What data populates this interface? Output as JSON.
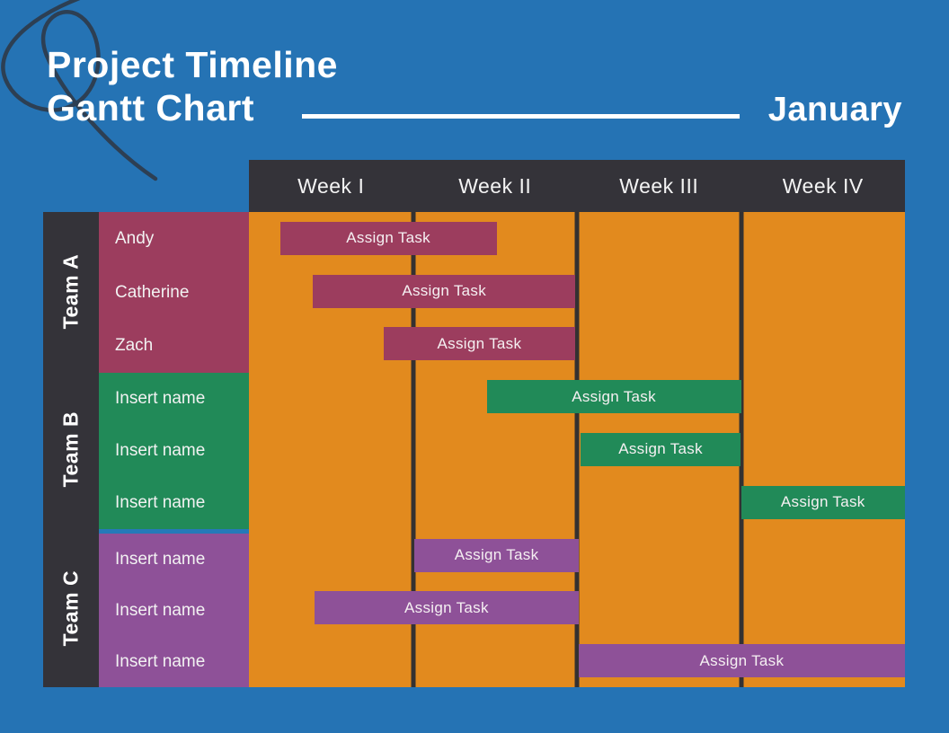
{
  "header": {
    "title_line1": "Project Timeline",
    "title_line2": "Gantt Chart",
    "period": "January"
  },
  "columns": [
    "Week I",
    "Week II",
    "Week III",
    "Week IV"
  ],
  "teams": [
    {
      "name": "Team A",
      "color": "#9c3d5e",
      "members": [
        "Andy",
        "Catherine",
        "Zach"
      ]
    },
    {
      "name": "Team B",
      "color": "#218a58",
      "members": [
        "Insert name",
        "Insert name",
        "Insert name"
      ]
    },
    {
      "name": "Team C",
      "color": "#8e5198",
      "members": [
        "Insert name",
        "Insert name",
        "Insert name"
      ]
    }
  ],
  "chart_data": {
    "type": "bar",
    "subtype": "gantt",
    "title": "Project Timeline Gantt Chart",
    "period": "January",
    "x_categories": [
      "Week I",
      "Week II",
      "Week III",
      "Week IV"
    ],
    "x_range_weeks": [
      0,
      4
    ],
    "grid": "vertical-week-separators",
    "legend": false,
    "rows": [
      {
        "team": "Team A",
        "member": "Andy",
        "task": "Assign Task",
        "start_week": 0.19,
        "end_week": 1.51,
        "color": "#9c3d5e"
      },
      {
        "team": "Team A",
        "member": "Catherine",
        "task": "Assign Task",
        "start_week": 0.39,
        "end_week": 1.99,
        "color": "#9c3d5e"
      },
      {
        "team": "Team A",
        "member": "Zach",
        "task": "Assign Task",
        "start_week": 0.82,
        "end_week": 1.99,
        "color": "#9c3d5e"
      },
      {
        "team": "Team B",
        "member": "Insert name",
        "task": "Assign Task",
        "start_week": 1.45,
        "end_week": 3.0,
        "color": "#218a58"
      },
      {
        "team": "Team B",
        "member": "Insert name",
        "task": "Assign Task",
        "start_week": 2.02,
        "end_week": 3.0,
        "color": "#218a58"
      },
      {
        "team": "Team B",
        "member": "Insert name",
        "task": "Assign Task",
        "start_week": 3.0,
        "end_week": 4.0,
        "color": "#218a58"
      },
      {
        "team": "Team C",
        "member": "Insert name",
        "task": "Assign Task",
        "start_week": 1.01,
        "end_week": 2.01,
        "color": "#8e5198"
      },
      {
        "team": "Team C",
        "member": "Insert name",
        "task": "Assign Task",
        "start_week": 0.4,
        "end_week": 2.01,
        "color": "#8e5198"
      },
      {
        "team": "Team C",
        "member": "Insert name",
        "task": "Assign Task",
        "start_week": 2.01,
        "end_week": 4.0,
        "color": "#8e5198"
      }
    ]
  },
  "colors": {
    "background": "#2573b4",
    "panel_dark": "#343339",
    "chart_background": "#e28a1e",
    "team_a": "#9c3d5e",
    "team_b": "#218a58",
    "team_c": "#8e5198",
    "divider_blue": "#2579b8",
    "text": "#ffffff",
    "squiggle": "#2d3f53"
  }
}
